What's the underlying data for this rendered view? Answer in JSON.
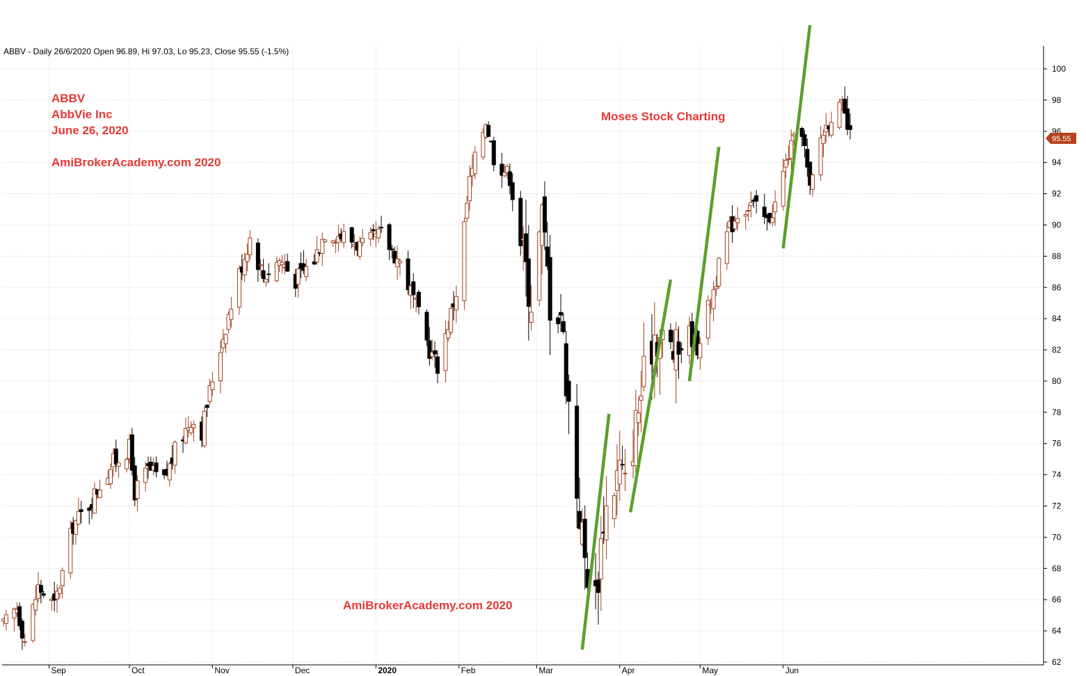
{
  "header": "ABBV - Daily 26/6/2020 Open 96.89, Hi 97.03, Lo 95.23, Close 95.55 (-1.5%)",
  "annotations": {
    "ticker": "ABBV",
    "company": "AbbVie Inc",
    "date": "June 26, 2020",
    "site_top": "AmiBrokerAcademy.com 2020",
    "center": "Moses Stock Charting",
    "site_bottom": "AmiBrokerAcademy.com  2020"
  },
  "last_price_label": "95.55",
  "colors": {
    "up_candle": "#a0401a",
    "down_candle": "#000000",
    "trendline": "#5aa02c",
    "annotation": "#e53935",
    "price_tag": "#b5421a"
  },
  "chart_data": {
    "type": "candlestick",
    "ylim": [
      62,
      101
    ],
    "y_ticks": [
      62,
      64,
      66,
      68,
      70,
      72,
      74,
      76,
      78,
      80,
      82,
      84,
      86,
      88,
      90,
      92,
      94,
      96,
      98,
      100
    ],
    "x_ticks": [
      "Sep",
      "Oct",
      "Nov",
      "Dec",
      "2020",
      "Feb",
      "Mar",
      "Apr",
      "May",
      "Jun"
    ],
    "x_range": [
      "2019-08-15",
      "2020-07-27"
    ],
    "grid": true,
    "anchors": [
      [
        "2019-08-15",
        64.3
      ],
      [
        "2019-08-20",
        65.5
      ],
      [
        "2019-08-23",
        63.4
      ],
      [
        "2019-08-28",
        66.8
      ],
      [
        "2019-09-03",
        65.6
      ],
      [
        "2019-09-06",
        67.7
      ],
      [
        "2019-09-10",
        70.8
      ],
      [
        "2019-09-16",
        72.1
      ],
      [
        "2019-09-20",
        73.4
      ],
      [
        "2019-09-25",
        74.8
      ],
      [
        "2019-10-01",
        75.7
      ],
      [
        "2019-10-03",
        72.9
      ],
      [
        "2019-10-08",
        74.3
      ],
      [
        "2019-10-14",
        73.6
      ],
      [
        "2019-10-18",
        75.5
      ],
      [
        "2019-10-24",
        77.6
      ],
      [
        "2019-10-28",
        76.8
      ],
      [
        "2019-11-01",
        80.2
      ],
      [
        "2019-11-04",
        82.2
      ],
      [
        "2019-11-11",
        86.9
      ],
      [
        "2019-11-15",
        89.2
      ],
      [
        "2019-11-20",
        86.7
      ],
      [
        "2019-11-26",
        87.8
      ],
      [
        "2019-12-02",
        86.5
      ],
      [
        "2019-12-09",
        87.8
      ],
      [
        "2019-12-13",
        89.6
      ],
      [
        "2019-12-20",
        89.3
      ],
      [
        "2019-12-27",
        88.6
      ],
      [
        "2020-01-03",
        89.4
      ],
      [
        "2020-01-10",
        87.6
      ],
      [
        "2020-01-15",
        85.3
      ],
      [
        "2020-01-21",
        82.0
      ],
      [
        "2020-01-24",
        81.0
      ],
      [
        "2020-01-31",
        85.7
      ],
      [
        "2020-02-05",
        92.8
      ],
      [
        "2020-02-11",
        96.8
      ],
      [
        "2020-02-14",
        94.4
      ],
      [
        "2020-02-20",
        93.1
      ],
      [
        "2020-02-24",
        88.9
      ],
      [
        "2020-02-28",
        85.3
      ],
      [
        "2020-03-03",
        90.5
      ],
      [
        "2020-03-06",
        85.2
      ],
      [
        "2020-03-10",
        84.6
      ],
      [
        "2020-03-12",
        80.4
      ],
      [
        "2020-03-16",
        73.1
      ],
      [
        "2020-03-19",
        68.6
      ],
      [
        "2020-03-23",
        66.1
      ],
      [
        "2020-03-26",
        71.4
      ],
      [
        "2020-04-01",
        74.5
      ],
      [
        "2020-04-03",
        73.2
      ],
      [
        "2020-04-09",
        79.3
      ],
      [
        "2020-04-14",
        83.2
      ],
      [
        "2020-04-17",
        82.6
      ],
      [
        "2020-04-22",
        81.8
      ],
      [
        "2020-04-27",
        83.1
      ],
      [
        "2020-04-30",
        82.2
      ],
      [
        "2020-05-06",
        85.9
      ],
      [
        "2020-05-11",
        89.4
      ],
      [
        "2020-05-15",
        90.8
      ],
      [
        "2020-05-20",
        91.4
      ],
      [
        "2020-05-26",
        90.2
      ],
      [
        "2020-05-29",
        91.3
      ],
      [
        "2020-06-03",
        94.6
      ],
      [
        "2020-06-08",
        96.2
      ],
      [
        "2020-06-11",
        92.1
      ],
      [
        "2020-06-15",
        95.6
      ],
      [
        "2020-06-19",
        97.1
      ],
      [
        "2020-06-23",
        97.5
      ],
      [
        "2020-06-26",
        95.55
      ]
    ],
    "last_close": 95.55,
    "trendlines": [
      {
        "from": [
          "2020-03-18",
          62.8
        ],
        "to": [
          "2020-03-28",
          77.9
        ]
      },
      {
        "from": [
          "2020-04-05",
          71.6
        ],
        "to": [
          "2020-04-20",
          86.5
        ]
      },
      {
        "from": [
          "2020-04-27",
          80.0
        ],
        "to": [
          "2020-05-08",
          95.0
        ]
      },
      {
        "from": [
          "2020-06-01",
          88.5
        ],
        "to": [
          "2020-06-11",
          102.8
        ]
      }
    ]
  }
}
